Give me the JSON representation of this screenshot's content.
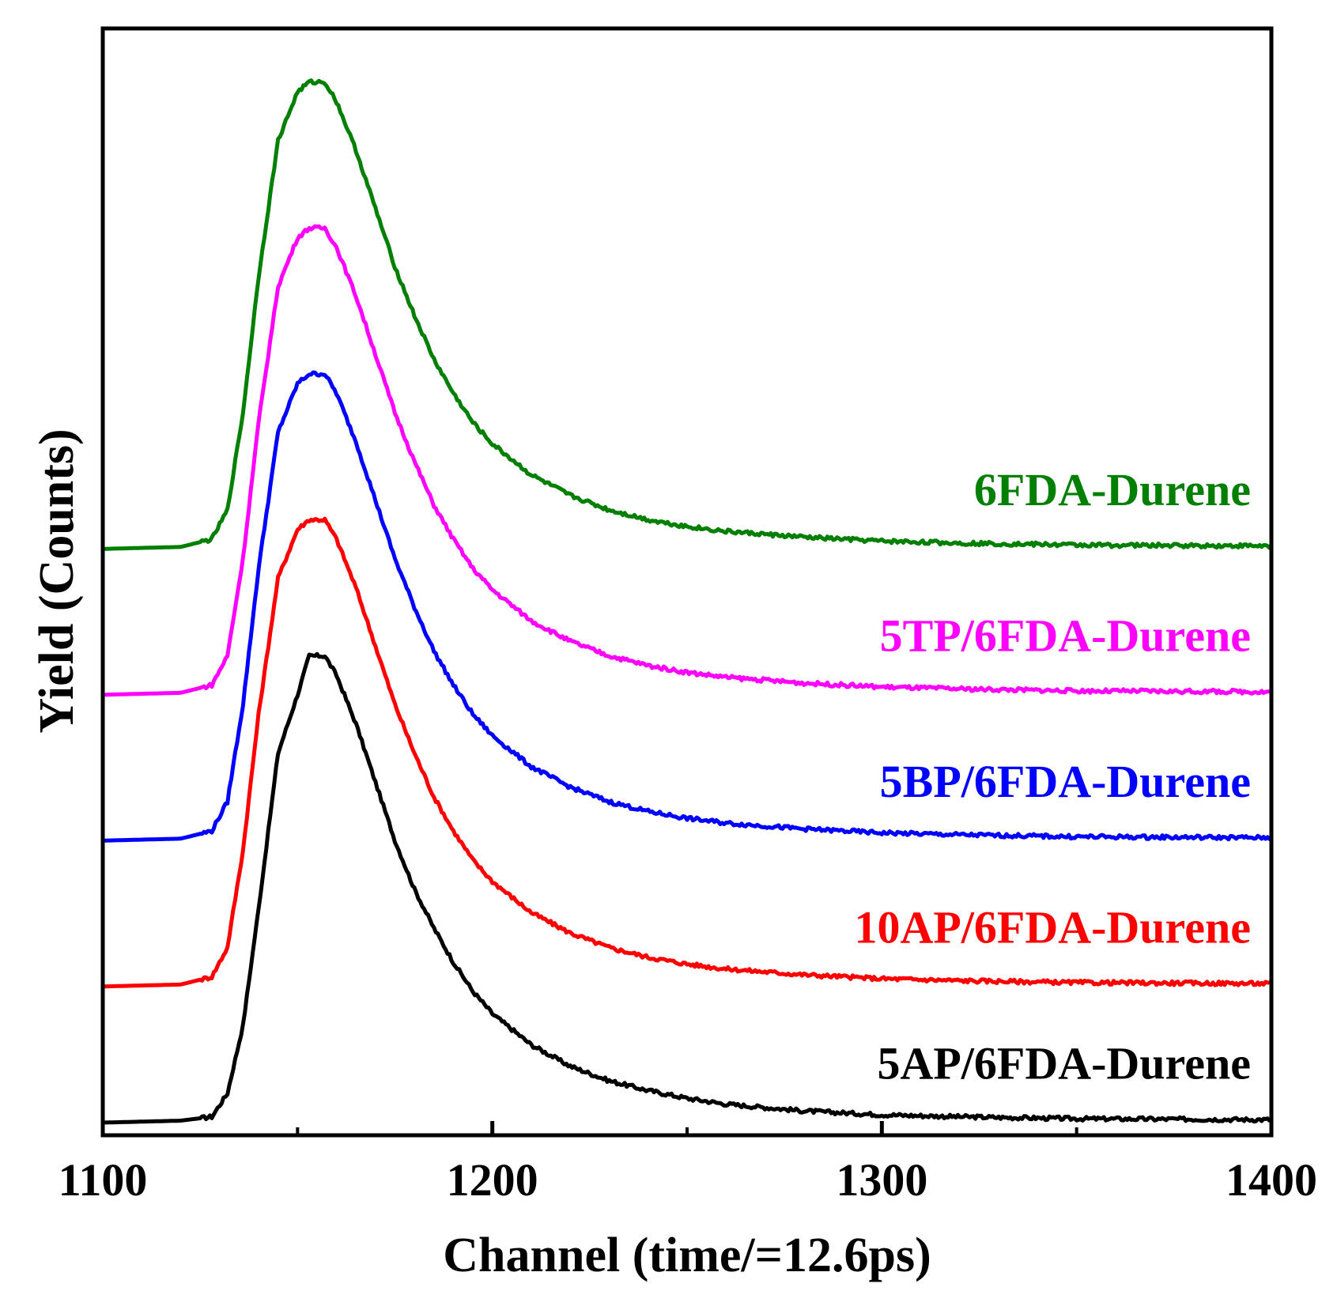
{
  "chart_data": {
    "type": "line",
    "title": "",
    "xlabel": "Channel (time/=12.6ps)",
    "ylabel": "Yield (Counts)",
    "xlim": [
      1100,
      1400
    ],
    "ylim": [
      0,
      1
    ],
    "xticks": [
      1100,
      1200,
      1300,
      1400
    ],
    "xtick_labels": [
      "1100",
      "1200",
      "1300",
      "1400"
    ],
    "minor_xticks": [
      1150,
      1250,
      1350
    ],
    "show_y_ticks": false,
    "grid": false,
    "legend": "inline labels at right of each curve",
    "series": [
      {
        "name": "5AP/6FDA-Durene",
        "color": "#000000",
        "offset": 0.0,
        "tail": 0.003,
        "x": [
          1100,
          1120,
          1128,
          1132,
          1136,
          1140,
          1145,
          1150,
          1153,
          1157,
          1160,
          1165,
          1170,
          1175,
          1180,
          1185,
          1190,
          1195,
          1200,
          1210,
          1220,
          1230,
          1240,
          1250,
          1260,
          1280,
          1300,
          1320,
          1350,
          1400
        ],
        "y": [
          0.0,
          0.002,
          0.006,
          0.03,
          0.1,
          0.22,
          0.38,
          0.44,
          0.48,
          0.48,
          0.46,
          0.41,
          0.35,
          0.29,
          0.24,
          0.2,
          0.165,
          0.135,
          0.112,
          0.08,
          0.058,
          0.043,
          0.033,
          0.025,
          0.019,
          0.012,
          0.008,
          0.006,
          0.004,
          0.003
        ]
      },
      {
        "name": "10AP/6FDA-Durene",
        "color": "#ff0000",
        "offset": 0.14,
        "tail": 0.003,
        "x": [
          1100,
          1120,
          1128,
          1132,
          1136,
          1140,
          1145,
          1150,
          1153,
          1157,
          1160,
          1165,
          1170,
          1175,
          1180,
          1185,
          1190,
          1195,
          1200,
          1210,
          1220,
          1230,
          1240,
          1250,
          1260,
          1280,
          1300,
          1320,
          1350,
          1400
        ],
        "y": [
          0.0,
          0.002,
          0.01,
          0.04,
          0.14,
          0.28,
          0.42,
          0.47,
          0.48,
          0.48,
          0.46,
          0.41,
          0.35,
          0.29,
          0.24,
          0.195,
          0.16,
          0.13,
          0.108,
          0.076,
          0.055,
          0.04,
          0.03,
          0.023,
          0.018,
          0.012,
          0.008,
          0.006,
          0.004,
          0.003
        ]
      },
      {
        "name": "5BP/6FDA-Durene",
        "color": "#0000ff",
        "offset": 0.29,
        "tail": 0.003,
        "x": [
          1100,
          1120,
          1128,
          1132,
          1136,
          1140,
          1145,
          1150,
          1153,
          1157,
          1160,
          1165,
          1170,
          1175,
          1180,
          1185,
          1190,
          1195,
          1200,
          1210,
          1220,
          1230,
          1240,
          1250,
          1260,
          1280,
          1300,
          1320,
          1350,
          1400
        ],
        "y": [
          0.0,
          0.002,
          0.01,
          0.04,
          0.14,
          0.28,
          0.42,
          0.47,
          0.48,
          0.48,
          0.46,
          0.41,
          0.35,
          0.29,
          0.24,
          0.195,
          0.16,
          0.13,
          0.108,
          0.076,
          0.055,
          0.04,
          0.03,
          0.023,
          0.018,
          0.012,
          0.008,
          0.006,
          0.004,
          0.003
        ]
      },
      {
        "name": "5TP/6FDA-Durene",
        "color": "#ff00ff",
        "offset": 0.44,
        "tail": 0.003,
        "x": [
          1100,
          1120,
          1128,
          1132,
          1136,
          1140,
          1145,
          1150,
          1153,
          1157,
          1160,
          1165,
          1170,
          1175,
          1180,
          1185,
          1190,
          1195,
          1200,
          1210,
          1220,
          1230,
          1240,
          1250,
          1260,
          1280,
          1300,
          1320,
          1350,
          1400
        ],
        "y": [
          0.0,
          0.002,
          0.01,
          0.04,
          0.14,
          0.28,
          0.42,
          0.47,
          0.48,
          0.48,
          0.46,
          0.41,
          0.35,
          0.29,
          0.24,
          0.195,
          0.16,
          0.13,
          0.108,
          0.076,
          0.055,
          0.04,
          0.03,
          0.023,
          0.018,
          0.012,
          0.008,
          0.006,
          0.004,
          0.003
        ]
      },
      {
        "name": "6FDA-Durene",
        "color": "#007f00",
        "offset": 0.59,
        "tail": 0.003,
        "x": [
          1100,
          1120,
          1128,
          1132,
          1136,
          1140,
          1145,
          1150,
          1153,
          1157,
          1160,
          1165,
          1170,
          1175,
          1180,
          1185,
          1190,
          1195,
          1200,
          1210,
          1220,
          1230,
          1240,
          1250,
          1260,
          1280,
          1300,
          1320,
          1350,
          1400
        ],
        "y": [
          0.0,
          0.002,
          0.01,
          0.04,
          0.14,
          0.28,
          0.42,
          0.47,
          0.48,
          0.48,
          0.46,
          0.41,
          0.35,
          0.29,
          0.24,
          0.195,
          0.16,
          0.13,
          0.108,
          0.076,
          0.055,
          0.04,
          0.03,
          0.023,
          0.018,
          0.012,
          0.008,
          0.006,
          0.004,
          0.003
        ]
      }
    ]
  }
}
